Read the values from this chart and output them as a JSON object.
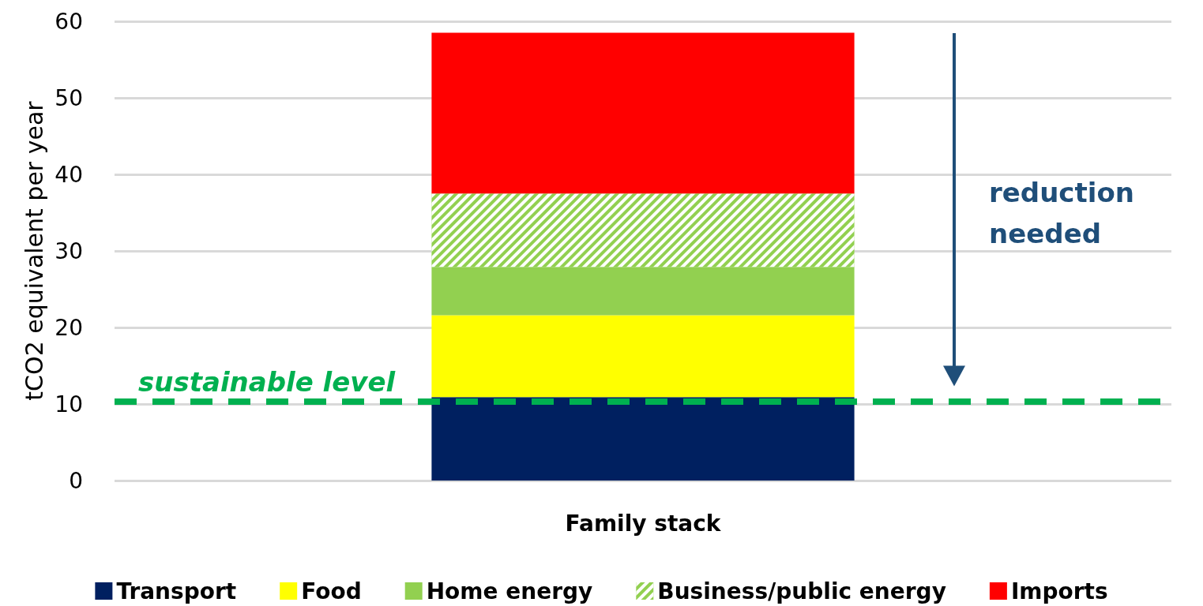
{
  "chart_data": {
    "type": "bar",
    "stacked": true,
    "categories": [
      "Family stack"
    ],
    "ylabel": "tCO2 equivalent per year",
    "series": [
      {
        "name": "Transport",
        "color": "#002060",
        "values": [
          10.9
        ]
      },
      {
        "name": "Food",
        "color": "#ffff00",
        "values": [
          10.7
        ]
      },
      {
        "name": "Home energy",
        "color": "#92d050",
        "values": [
          6.3
        ]
      },
      {
        "name": "Business/public energy",
        "color": "#92d050",
        "values": [
          9.6
        ]
      },
      {
        "name": "Imports",
        "color": "#ff0000",
        "values": [
          21
        ]
      }
    ],
    "ylim": [
      0,
      60
    ],
    "yticks": [
      0,
      10,
      20,
      30,
      40,
      50,
      60
    ],
    "grid": "y",
    "ref_lines": [
      {
        "axis": "y",
        "value": 10.3,
        "label": "sustainable level",
        "color": "#00b050",
        "line_style": "dashed"
      }
    ],
    "annotations": [
      "reduction needed"
    ],
    "legend": "bottom"
  }
}
